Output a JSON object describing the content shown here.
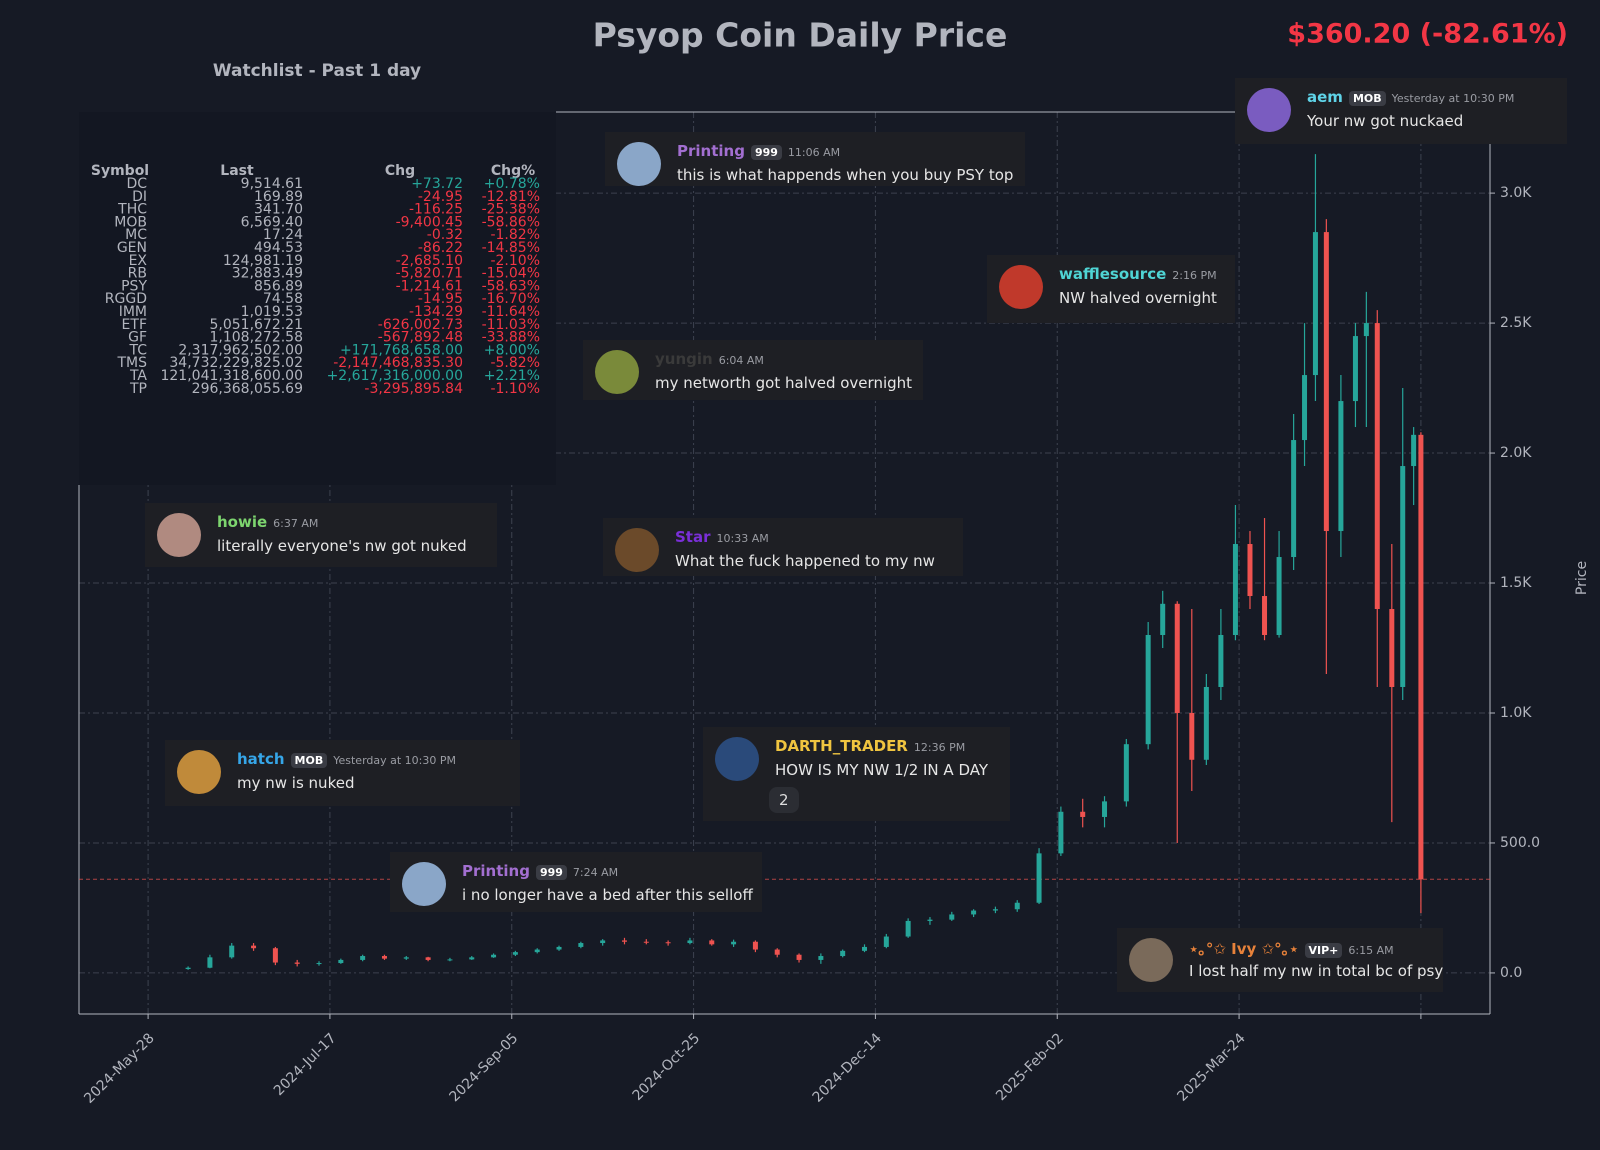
{
  "chart_data": {
    "type": "candlestick",
    "title": "Psyop Coin Daily Price",
    "last_price": 360.2,
    "last_price_label": "$360.20 (-82.61%)",
    "ylabel": "Price",
    "up_color": "#26a69a",
    "down_color": "#ef5350",
    "grid": true,
    "x": [
      "2024-06-08",
      "2024-06-14",
      "2024-06-20",
      "2024-06-26",
      "2024-07-02",
      "2024-07-08",
      "2024-07-14",
      "2024-07-20",
      "2024-07-26",
      "2024-08-01",
      "2024-08-07",
      "2024-08-13",
      "2024-08-19",
      "2024-08-25",
      "2024-08-31",
      "2024-09-06",
      "2024-09-12",
      "2024-09-18",
      "2024-09-24",
      "2024-09-30",
      "2024-10-06",
      "2024-10-12",
      "2024-10-18",
      "2024-10-24",
      "2024-10-30",
      "2024-11-05",
      "2024-11-11",
      "2024-11-17",
      "2024-11-23",
      "2024-11-29",
      "2024-12-05",
      "2024-12-11",
      "2024-12-17",
      "2024-12-23",
      "2024-12-29",
      "2025-01-04",
      "2025-01-10",
      "2025-01-16",
      "2025-01-22",
      "2025-01-28",
      "2025-02-03",
      "2025-02-09",
      "2025-02-15",
      "2025-02-21",
      "2025-02-27",
      "2025-03-03",
      "2025-03-07",
      "2025-03-11",
      "2025-03-15",
      "2025-03-19",
      "2025-03-23",
      "2025-03-27",
      "2025-03-31",
      "2025-04-04",
      "2025-04-08",
      "2025-04-11",
      "2025-04-14",
      "2025-04-17",
      "2025-04-21",
      "2025-04-25",
      "2025-04-28",
      "2025-05-01",
      "2025-05-05",
      "2025-05-08",
      "2025-05-11",
      "2025-05-13"
    ],
    "open": [
      15,
      20,
      60,
      105,
      95,
      40,
      35,
      38,
      50,
      65,
      55,
      60,
      50,
      52,
      60,
      70,
      80,
      90,
      100,
      115,
      125,
      120,
      118,
      115,
      125,
      110,
      120,
      90,
      70,
      50,
      65,
      85,
      100,
      140,
      200,
      205,
      225,
      240,
      245,
      270,
      460,
      620,
      600,
      660,
      880,
      1300,
      1420,
      1000,
      820,
      1100,
      1300,
      1650,
      1450,
      1300,
      1600,
      2050,
      2300,
      2850,
      1700,
      2200,
      2450,
      2500,
      1400,
      1100,
      1950,
      2070
    ],
    "high": [
      25,
      70,
      115,
      115,
      100,
      50,
      45,
      55,
      70,
      70,
      65,
      62,
      58,
      65,
      75,
      85,
      95,
      105,
      120,
      130,
      135,
      130,
      125,
      135,
      130,
      128,
      125,
      95,
      75,
      75,
      90,
      110,
      150,
      210,
      215,
      235,
      245,
      255,
      280,
      480,
      640,
      670,
      680,
      900,
      1350,
      1470,
      1430,
      1400,
      1150,
      1400,
      1800,
      1700,
      1750,
      1700,
      2150,
      2500,
      3150,
      2900,
      2300,
      2500,
      2620,
      2550,
      1650,
      2250,
      2100,
      2080
    ],
    "low": [
      12,
      18,
      55,
      85,
      30,
      25,
      28,
      35,
      45,
      50,
      50,
      45,
      45,
      50,
      58,
      65,
      75,
      85,
      95,
      105,
      110,
      110,
      105,
      110,
      105,
      100,
      80,
      60,
      40,
      35,
      60,
      80,
      95,
      135,
      185,
      200,
      215,
      230,
      235,
      265,
      450,
      560,
      560,
      640,
      860,
      1250,
      500,
      700,
      800,
      1050,
      1280,
      1400,
      1280,
      1290,
      1550,
      1950,
      2200,
      1150,
      1600,
      2100,
      2100,
      1100,
      580,
      1050,
      1800,
      230
    ],
    "close": [
      20,
      60,
      105,
      95,
      40,
      35,
      38,
      50,
      65,
      55,
      60,
      50,
      52,
      60,
      70,
      80,
      90,
      100,
      115,
      125,
      120,
      118,
      115,
      125,
      110,
      120,
      90,
      70,
      50,
      65,
      85,
      100,
      140,
      200,
      205,
      225,
      240,
      245,
      270,
      460,
      620,
      600,
      660,
      880,
      1300,
      1420,
      1000,
      820,
      1100,
      1300,
      1650,
      1450,
      1300,
      1600,
      2050,
      2300,
      2850,
      1700,
      2200,
      2450,
      2500,
      1400,
      1100,
      1950,
      2070,
      360
    ],
    "xlim": [
      "2024-05-09",
      "2025-06-01"
    ],
    "xticks": [
      {
        "value": "2024-05-28",
        "label": "2024-May-28"
      },
      {
        "value": "2024-07-17",
        "label": "2024-Jul-17"
      },
      {
        "value": "2024-09-05",
        "label": "2024-Sep-05"
      },
      {
        "value": "2024-10-25",
        "label": "2024-Oct-25"
      },
      {
        "value": "2024-12-14",
        "label": "2024-Dec-14"
      },
      {
        "value": "2025-02-02",
        "label": "2025-Feb-02"
      },
      {
        "value": "2025-03-24",
        "label": "2025-Mar-24"
      },
      {
        "value": "2025-05-13",
        "label": ""
      }
    ],
    "ylim": [
      -158,
      3312
    ],
    "yticks": [
      {
        "value": 0,
        "label": "0.0"
      },
      {
        "value": 500,
        "label": "500.0"
      },
      {
        "value": 1000,
        "label": "1.0K"
      },
      {
        "value": 1500,
        "label": "1.5K"
      },
      {
        "value": 2000,
        "label": "2.0K"
      },
      {
        "value": 2500,
        "label": "2.5K"
      },
      {
        "value": 3000,
        "label": "3.0K"
      }
    ]
  },
  "watchlist": {
    "title": "Watchlist - Past 1 day",
    "columns": [
      "Symbol",
      "Last",
      "Chg",
      "Chg%"
    ],
    "rows": [
      [
        "DC",
        "9,514.61",
        "+73.72",
        "+0.78%"
      ],
      [
        "DI",
        "169.89",
        "-24.95",
        "-12.81%"
      ],
      [
        "THC",
        "341.70",
        "-116.25",
        "-25.38%"
      ],
      [
        "MOB",
        "6,569.40",
        "-9,400.45",
        "-58.86%"
      ],
      [
        "MC",
        "17.24",
        "-0.32",
        "-1.82%"
      ],
      [
        "GEN",
        "494.53",
        "-86.22",
        "-14.85%"
      ],
      [
        "EX",
        "124,981.19",
        "-2,685.10",
        "-2.10%"
      ],
      [
        "RB",
        "32,883.49",
        "-5,820.71",
        "-15.04%"
      ],
      [
        "PSY",
        "856.89",
        "-1,214.61",
        "-58.63%"
      ],
      [
        "RGGD",
        "74.58",
        "-14.95",
        "-16.70%"
      ],
      [
        "IMM",
        "1,019.53",
        "-134.29",
        "-11.64%"
      ],
      [
        "ETF",
        "5,051,672.21",
        "-626,002.73",
        "-11.03%"
      ],
      [
        "GF",
        "1,108,272.58",
        "-567,892.48",
        "-33.88%"
      ],
      [
        "TC",
        "2,317,962,502.00",
        "+171,768,658.00",
        "+8.00%"
      ],
      [
        "TMS",
        "34,732,229,825.02",
        "-2,147,468,835.30",
        "-5.82%"
      ],
      [
        "TA",
        "121,041,318,600.00",
        "+2,617,316,000.00",
        "+2.21%"
      ],
      [
        "TP",
        "296,368,055.69",
        "-3,295,895.84",
        "-1.10%"
      ]
    ]
  },
  "messages": [
    {
      "name": "aem",
      "badge": "MOB",
      "time": "Yesterday at 10:30 PM",
      "text": "Your nw got nuckaed"
    },
    {
      "name": "Printing",
      "badge": "999",
      "time": "11:06 AM",
      "text": "this is what happends when you buy PSY top"
    },
    {
      "name": "wafflesource",
      "time": "2:16 PM",
      "text": "NW halved overnight"
    },
    {
      "name": "yungin",
      "time": "6:04 AM",
      "text": "my networth got halved overnight"
    },
    {
      "name": "howie",
      "time": "6:37 AM",
      "text": "literally everyone's nw got nuked"
    },
    {
      "name": "Star",
      "time": "10:33 AM",
      "text": "What the fuck happened to my nw"
    },
    {
      "name": "hatch",
      "badge": "MOB",
      "time": "Yesterday at 10:30 PM",
      "text": "my nw is nuked"
    },
    {
      "name": "DARTH_TRADER",
      "time": "12:36 PM",
      "text": "HOW IS MY NW 1/2 IN A DAY",
      "reaction": "2"
    },
    {
      "name": "Printing",
      "badge": "999",
      "time": "7:24 AM",
      "text": "i no longer have a bed after this selloff"
    },
    {
      "name": "⋆｡°✩ Ivy ✩°｡⋆",
      "badge": "VIP+",
      "time": "6:15 AM",
      "text": "I lost half my nw in total bc of psy"
    }
  ]
}
